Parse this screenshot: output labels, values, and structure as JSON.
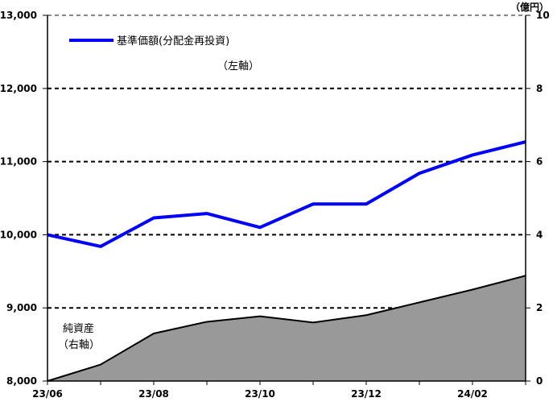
{
  "chart_data": {
    "type": "line",
    "x": [
      "23/06",
      "23/07",
      "23/08",
      "23/09",
      "23/10",
      "23/11",
      "23/12",
      "24/01",
      "24/02",
      "24/03"
    ],
    "x_tick_labels": [
      "23/06",
      "23/08",
      "23/10",
      "23/12",
      "24/02"
    ],
    "series": [
      {
        "name": "基準価額(分配金再投資)",
        "axis": "left",
        "type": "line",
        "values": [
          10000,
          9840,
          10230,
          10290,
          10100,
          10420,
          10420,
          10840,
          11090,
          11270
        ]
      },
      {
        "name": "純資産",
        "axis": "right",
        "type": "area",
        "values": [
          0,
          0.45,
          1.3,
          1.62,
          1.77,
          1.6,
          1.8,
          2.15,
          2.5,
          2.88
        ]
      }
    ],
    "y_left": {
      "lim": [
        8000,
        13000
      ],
      "ticks": [
        "8,000",
        "9,000",
        "10,000",
        "11,000",
        "12,000",
        "13,000"
      ]
    },
    "y_right": {
      "lim": [
        0,
        10
      ],
      "ticks": [
        "0",
        "2",
        "4",
        "6",
        "8",
        "10"
      ],
      "unit": "（億円）"
    },
    "legend": {
      "line_label": "基準価額(分配金再投資)",
      "line_axis_note": "（左軸）"
    },
    "area_label": {
      "name": "純資産",
      "axis_note": "（右軸）"
    },
    "grid": true,
    "colors": {
      "line": "#0000ff",
      "area": "#999999",
      "grid": "#000000"
    }
  }
}
